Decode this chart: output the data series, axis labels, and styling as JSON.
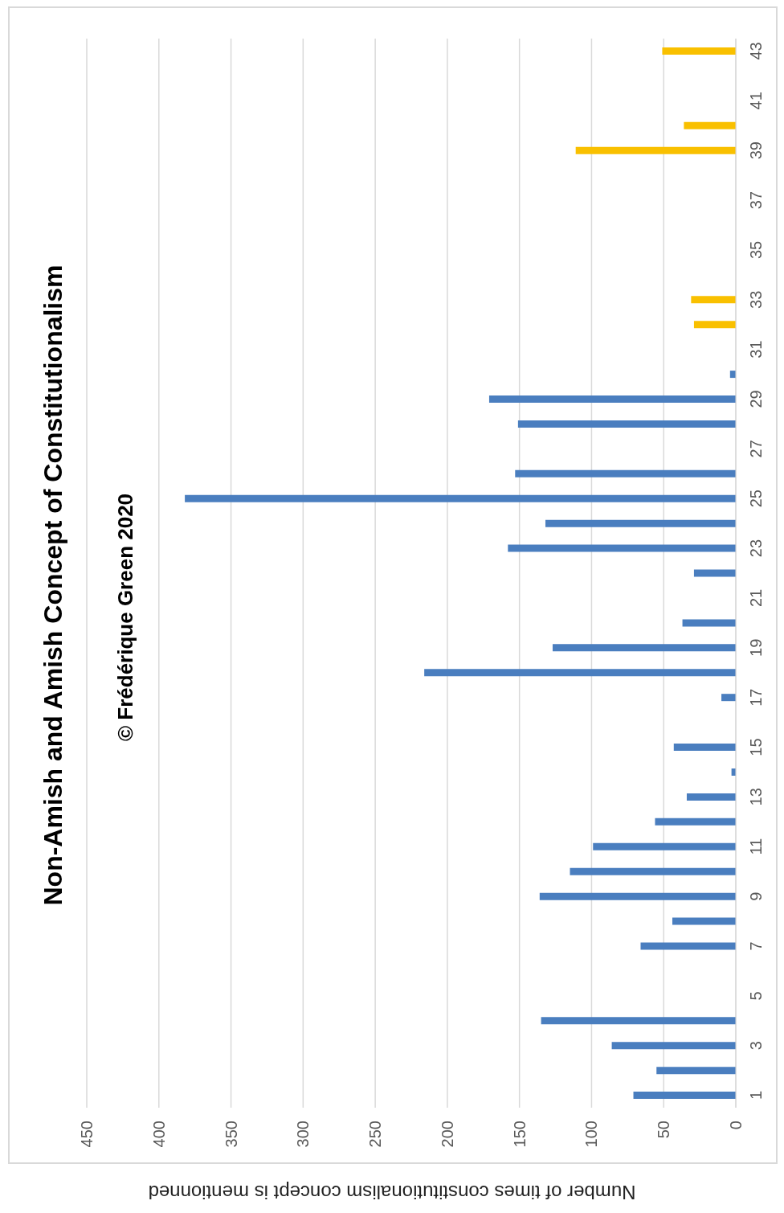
{
  "chart_data": {
    "type": "bar",
    "orientation": "horizontal",
    "title": "Non-Amish and Amish Concept of Constitutionalism",
    "subtitle": "© Frédérique Green 2020",
    "xlabel": "Number of times constitutionalism concept is mentionned",
    "categories": [
      "43",
      null,
      "41",
      null,
      "39",
      null,
      "37",
      null,
      "35",
      null,
      "33",
      null,
      "31",
      null,
      "29",
      null,
      "27",
      null,
      "25",
      null,
      "23",
      null,
      "21",
      null,
      "19",
      null,
      "17",
      null,
      "15",
      null,
      "13",
      null,
      "11",
      null,
      "9",
      null,
      "7",
      null,
      "5",
      null,
      "3",
      null,
      "1"
    ],
    "series": [
      {
        "color": "#4a7ebf",
        "values": [
          null,
          null,
          null,
          null,
          null,
          null,
          null,
          null,
          null,
          null,
          null,
          null,
          null,
          4,
          171,
          151,
          null,
          153,
          382,
          132,
          158,
          29,
          null,
          37,
          127,
          216,
          10,
          null,
          43,
          3,
          34,
          56,
          99,
          115,
          136,
          44,
          66,
          null,
          null,
          135,
          86,
          55,
          71
        ]
      },
      {
        "color": "#f9c000",
        "values": [
          51,
          null,
          null,
          36,
          111,
          null,
          null,
          null,
          null,
          null,
          31,
          29,
          null,
          null,
          null,
          null,
          null,
          null,
          null,
          null,
          null,
          null,
          null,
          null,
          null,
          null,
          null,
          null,
          null,
          null,
          null,
          null,
          null,
          null,
          null,
          null,
          null,
          null,
          null,
          null,
          null,
          null,
          null
        ]
      }
    ],
    "xlim": [
      450,
      0
    ],
    "xticks": [
      450,
      400,
      350,
      300,
      250,
      200,
      150,
      100,
      50,
      0
    ],
    "grid": "x",
    "legend": false
  }
}
